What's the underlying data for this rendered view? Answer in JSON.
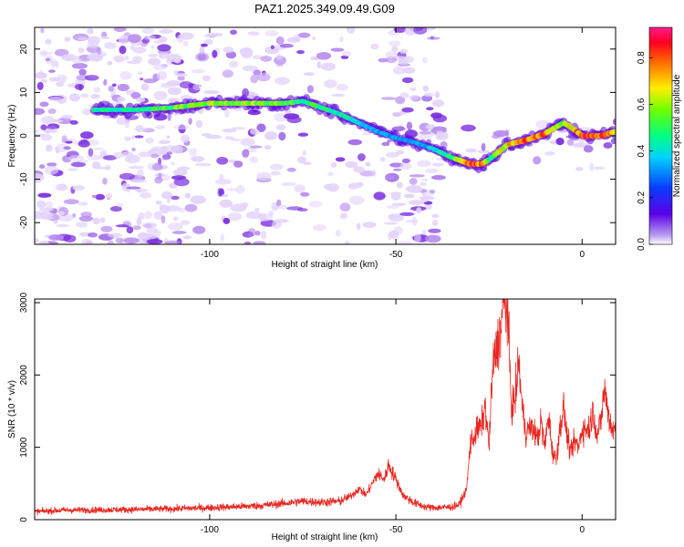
{
  "colors": {
    "snr_line": "#e8251e",
    "track_low": "#5a00d8",
    "speckle_light": "#e3d3fb",
    "speckle_mid": "#b68af0",
    "speckle_dark": "#7a2fe0",
    "axis": "#000000"
  },
  "chart_data": [
    {
      "type": "heatmap",
      "title": "PAZ1.2025.349.09.49.G09",
      "xlabel": "Height of straight line (km)",
      "ylabel": "Frequency (Hz)",
      "xlim": [
        -147,
        9
      ],
      "ylim": [
        -25,
        25
      ],
      "x_ticks": [
        -100,
        -50,
        0
      ],
      "x_tick_labels": [
        "-100",
        "-50",
        "0"
      ],
      "y_ticks": [
        -20,
        -10,
        0,
        10,
        20
      ],
      "y_tick_labels": [
        "-20",
        "-10",
        "0",
        "10",
        "20"
      ],
      "colorbar": {
        "label": "Normalized spectral amplitude",
        "range": [
          0,
          0.93
        ],
        "ticks": [
          0,
          0.2,
          0.4,
          0.6,
          0.8
        ],
        "tick_labels": [
          "0.0",
          "0.2",
          "0.4",
          "0.6",
          "0.8"
        ],
        "colormap": "rainbow (white-violet-blue-cyan-green-yellow-red-magenta)"
      },
      "ridge": {
        "x": [
          -131,
          -120,
          -110,
          -100,
          -90,
          -80,
          -75,
          -70,
          -65,
          -60,
          -55,
          -50,
          -45,
          -40,
          -35,
          -30,
          -27,
          -25,
          -20,
          -15,
          -10,
          -5,
          -3,
          0,
          5,
          9
        ],
        "frequency": [
          6,
          6,
          6.5,
          7.5,
          7.5,
          7.5,
          8,
          6.5,
          5,
          3,
          1,
          -0.5,
          -1.5,
          -3,
          -5,
          -6.5,
          -6.5,
          -5.5,
          -2,
          -1,
          0.5,
          3,
          2,
          0,
          0,
          1
        ],
        "amplitude": [
          0.45,
          0.45,
          0.55,
          0.62,
          0.6,
          0.58,
          0.5,
          0.5,
          0.45,
          0.4,
          0.32,
          0.3,
          0.28,
          0.35,
          0.5,
          0.85,
          0.85,
          0.5,
          0.72,
          0.82,
          0.85,
          0.62,
          0.7,
          0.88,
          0.86,
          0.7
        ]
      }
    },
    {
      "type": "line",
      "title": "",
      "xlabel": "Height of straight line (km)",
      "ylabel": "SNR (10 * v/v)",
      "xlim": [
        -147,
        9
      ],
      "ylim": [
        0,
        3050
      ],
      "x_ticks": [
        -100,
        -50,
        0
      ],
      "x_tick_labels": [
        "-100",
        "-50",
        "0"
      ],
      "y_ticks": [
        0,
        1000,
        2000,
        3000
      ],
      "y_tick_labels": [
        "0",
        "1000",
        "2000",
        "3000"
      ],
      "series": [
        {
          "name": "SNR",
          "x": [
            -147,
            -140,
            -130,
            -120,
            -110,
            -100,
            -95,
            -90,
            -85,
            -80,
            -75,
            -70,
            -65,
            -62,
            -60,
            -58,
            -55,
            -53,
            -52,
            -50,
            -48,
            -45,
            -42,
            -40,
            -37,
            -35,
            -33,
            -31,
            -30,
            -29,
            -28,
            -27,
            -26,
            -25,
            -24,
            -23,
            -22,
            -21,
            -20,
            -19,
            -18,
            -17,
            -16,
            -15,
            -14,
            -13,
            -12,
            -11,
            -10,
            -9,
            -8,
            -7,
            -6,
            -5,
            -4,
            -3,
            -2,
            -1,
            0,
            1,
            2,
            3,
            4,
            5,
            6,
            7,
            8,
            9
          ],
          "values": [
            110,
            130,
            135,
            140,
            150,
            165,
            175,
            185,
            200,
            225,
            255,
            240,
            255,
            330,
            430,
            340,
            630,
            560,
            760,
            560,
            330,
            230,
            175,
            165,
            170,
            175,
            210,
            420,
            1060,
            1150,
            1250,
            1300,
            1570,
            1000,
            2100,
            2350,
            2600,
            2980,
            2900,
            1550,
            1650,
            2200,
            1500,
            1180,
            1280,
            1240,
            1120,
            1350,
            1000,
            1450,
            950,
            820,
            1250,
            1550,
            1150,
            900,
            1100,
            1000,
            1250,
            1250,
            1280,
            1520,
            1150,
            1350,
            1800,
            1500,
            1250,
            1250
          ]
        }
      ]
    }
  ]
}
